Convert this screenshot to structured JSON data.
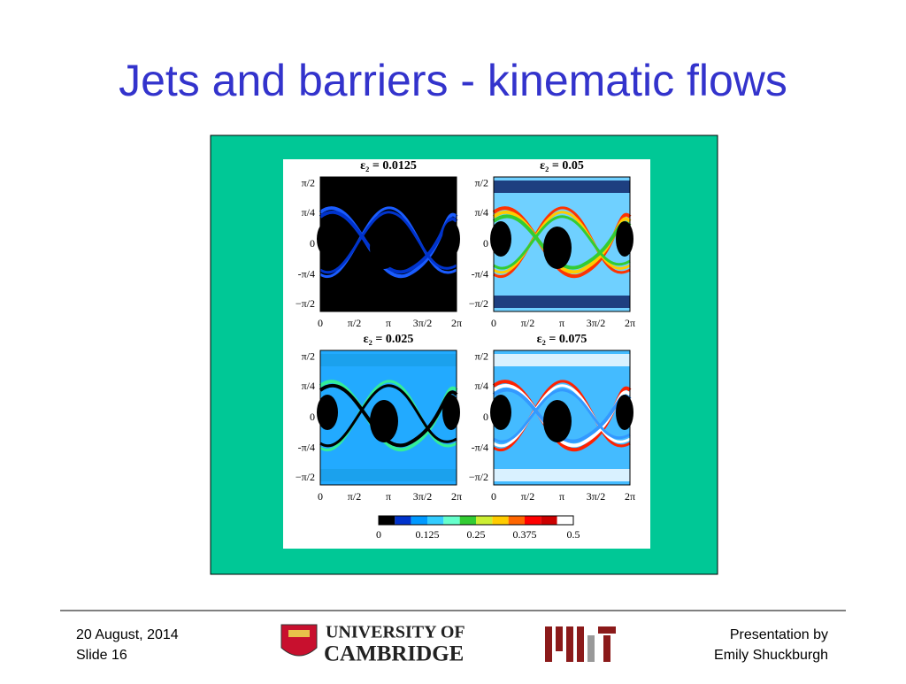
{
  "title": "Jets and barriers - kinematic flows",
  "figure": {
    "panels": [
      {
        "title": "ε₂ = 0.0125"
      },
      {
        "title": "ε₂ = 0.05"
      },
      {
        "title": "ε₂ = 0.025"
      },
      {
        "title": "ε₂ = 0.075"
      }
    ],
    "y_ticks": [
      "π/2",
      "π/4",
      "0",
      "-π/4",
      "−π/2"
    ],
    "x_ticks": [
      "0",
      "π/2",
      "π",
      "3π/2",
      "2π"
    ],
    "colorbar_ticks": [
      "0",
      "0.125",
      "0.25",
      "0.375",
      "0.5"
    ]
  },
  "footer": {
    "date": "20 August, 2014",
    "slide": "Slide 16",
    "logo_line1": "UNIVERSITY OF",
    "logo_line2": "CAMBRIDGE",
    "presenter_line1": "Presentation by",
    "presenter_line2": "Emily Shuckburgh"
  }
}
